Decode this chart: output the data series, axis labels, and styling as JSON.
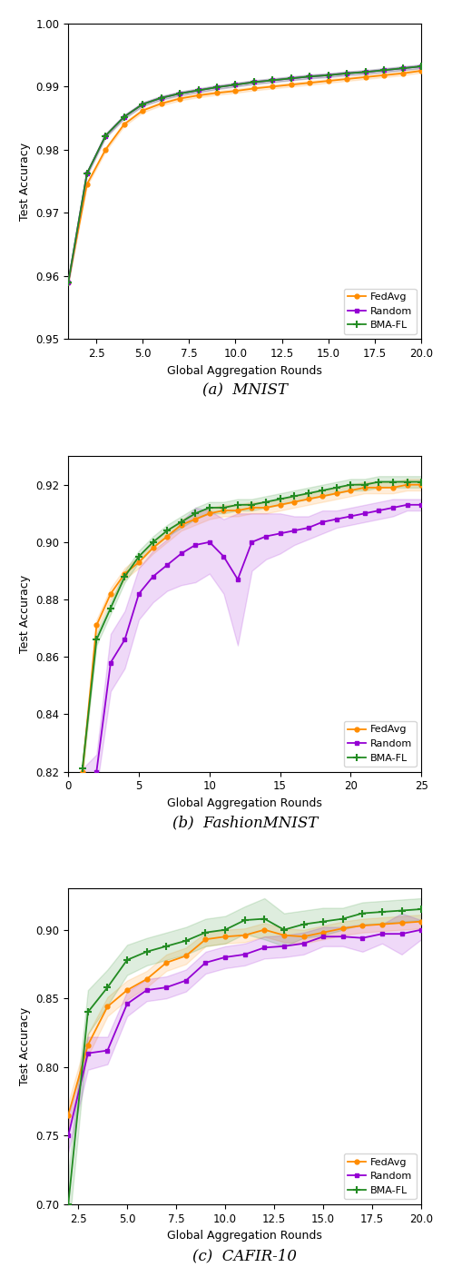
{
  "subplot_titles": [
    "(a)  MNIST",
    "(b)  FashionMNIST",
    "(c)  CAFIR-10"
  ],
  "xlabel": "Global Aggregation Rounds",
  "ylabel": "Test Accuracy",
  "legend_labels": [
    "FedAvg",
    "Random",
    "BMA-FL"
  ],
  "colors": {
    "fedavg": "#FF8C00",
    "random": "#9400D3",
    "bmafl": "#228B22"
  },
  "fill_alpha": 0.15,
  "mnist": {
    "x": [
      1,
      2,
      3,
      4,
      5,
      6,
      7,
      8,
      9,
      10,
      11,
      12,
      13,
      14,
      15,
      16,
      17,
      18,
      19,
      20
    ],
    "fedavg_y": [
      0.959,
      0.9745,
      0.98,
      0.984,
      0.9862,
      0.9873,
      0.9881,
      0.9886,
      0.989,
      0.9893,
      0.9897,
      0.99,
      0.9903,
      0.9906,
      0.9909,
      0.9912,
      0.9915,
      0.9918,
      0.9921,
      0.9925
    ],
    "random_y": [
      0.959,
      0.9762,
      0.9822,
      0.9852,
      0.9872,
      0.9882,
      0.9889,
      0.9894,
      0.9899,
      0.9903,
      0.9907,
      0.991,
      0.9913,
      0.9916,
      0.9918,
      0.9921,
      0.9923,
      0.9926,
      0.9929,
      0.9932
    ],
    "bmafl_y": [
      0.959,
      0.9762,
      0.9822,
      0.9852,
      0.9872,
      0.9882,
      0.9889,
      0.9894,
      0.9899,
      0.9903,
      0.9907,
      0.991,
      0.9913,
      0.9916,
      0.9918,
      0.9921,
      0.9923,
      0.9926,
      0.9929,
      0.9932
    ],
    "fedavg_std": [
      0.0003,
      0.0003,
      0.0003,
      0.0003,
      0.0003,
      0.0003,
      0.0003,
      0.0003,
      0.0003,
      0.0003,
      0.0003,
      0.0003,
      0.0003,
      0.0003,
      0.0003,
      0.0003,
      0.0003,
      0.0003,
      0.0003,
      0.0003
    ],
    "random_std": [
      0.0003,
      0.0003,
      0.0003,
      0.0003,
      0.0003,
      0.0003,
      0.0003,
      0.0003,
      0.0003,
      0.0003,
      0.0003,
      0.0003,
      0.0003,
      0.0003,
      0.0003,
      0.0003,
      0.0003,
      0.0003,
      0.0003,
      0.0003
    ],
    "bmafl_std": [
      0.0003,
      0.0003,
      0.0003,
      0.0003,
      0.0003,
      0.0003,
      0.0003,
      0.0003,
      0.0003,
      0.0003,
      0.0003,
      0.0003,
      0.0003,
      0.0003,
      0.0003,
      0.0003,
      0.0003,
      0.0003,
      0.0003,
      0.0003
    ],
    "xlim": [
      1,
      20
    ],
    "ylim": [
      0.95,
      1.0
    ],
    "xticks": [
      2.5,
      5.0,
      7.5,
      10.0,
      12.5,
      15.0,
      17.5,
      20.0
    ],
    "yticks": [
      0.95,
      0.96,
      0.97,
      0.98,
      0.99,
      1.0
    ]
  },
  "fashionmnist": {
    "x": [
      1,
      2,
      3,
      4,
      5,
      6,
      7,
      8,
      9,
      10,
      11,
      12,
      13,
      14,
      15,
      16,
      17,
      18,
      19,
      20,
      21,
      22,
      23,
      24,
      25
    ],
    "fedavg_y": [
      0.82,
      0.871,
      0.882,
      0.889,
      0.893,
      0.898,
      0.902,
      0.906,
      0.908,
      0.91,
      0.911,
      0.911,
      0.912,
      0.912,
      0.913,
      0.914,
      0.915,
      0.916,
      0.917,
      0.918,
      0.919,
      0.919,
      0.919,
      0.92,
      0.92
    ],
    "random_y": [
      0.816,
      0.82,
      0.858,
      0.866,
      0.882,
      0.888,
      0.892,
      0.896,
      0.899,
      0.9,
      0.895,
      0.887,
      0.9,
      0.902,
      0.903,
      0.904,
      0.905,
      0.907,
      0.908,
      0.909,
      0.91,
      0.911,
      0.912,
      0.913,
      0.913
    ],
    "bmafl_y": [
      0.821,
      0.866,
      0.877,
      0.888,
      0.895,
      0.9,
      0.904,
      0.907,
      0.91,
      0.912,
      0.912,
      0.913,
      0.913,
      0.914,
      0.915,
      0.916,
      0.917,
      0.918,
      0.919,
      0.92,
      0.92,
      0.921,
      0.921,
      0.921,
      0.921
    ],
    "fedavg_std": [
      0.002,
      0.002,
      0.002,
      0.002,
      0.002,
      0.002,
      0.002,
      0.002,
      0.002,
      0.002,
      0.002,
      0.002,
      0.002,
      0.002,
      0.002,
      0.002,
      0.002,
      0.002,
      0.002,
      0.002,
      0.002,
      0.002,
      0.002,
      0.002,
      0.002
    ],
    "random_std": [
      0.005,
      0.006,
      0.01,
      0.01,
      0.009,
      0.009,
      0.009,
      0.011,
      0.013,
      0.011,
      0.013,
      0.023,
      0.01,
      0.008,
      0.007,
      0.005,
      0.004,
      0.004,
      0.003,
      0.003,
      0.003,
      0.003,
      0.003,
      0.002,
      0.002
    ],
    "bmafl_std": [
      0.002,
      0.002,
      0.002,
      0.002,
      0.002,
      0.002,
      0.002,
      0.002,
      0.002,
      0.002,
      0.002,
      0.002,
      0.002,
      0.002,
      0.002,
      0.002,
      0.002,
      0.002,
      0.002,
      0.002,
      0.002,
      0.002,
      0.002,
      0.002,
      0.002
    ],
    "xlim": [
      0,
      25
    ],
    "ylim": [
      0.82,
      0.93
    ],
    "xticks": [
      0,
      5,
      10,
      15,
      20,
      25
    ],
    "yticks": [
      0.82,
      0.84,
      0.86,
      0.88,
      0.9,
      0.92
    ]
  },
  "cifar10": {
    "x": [
      2,
      3,
      4,
      5,
      6,
      7,
      8,
      9,
      10,
      11,
      12,
      13,
      14,
      15,
      16,
      17,
      18,
      19,
      20
    ],
    "fedavg_y": [
      0.765,
      0.816,
      0.844,
      0.856,
      0.864,
      0.876,
      0.881,
      0.893,
      0.895,
      0.896,
      0.9,
      0.896,
      0.895,
      0.898,
      0.901,
      0.903,
      0.904,
      0.905,
      0.906
    ],
    "random_y": [
      0.75,
      0.81,
      0.812,
      0.846,
      0.856,
      0.858,
      0.863,
      0.876,
      0.88,
      0.882,
      0.887,
      0.888,
      0.89,
      0.895,
      0.895,
      0.894,
      0.897,
      0.897,
      0.9
    ],
    "bmafl_y": [
      0.7,
      0.84,
      0.858,
      0.878,
      0.884,
      0.888,
      0.892,
      0.898,
      0.9,
      0.907,
      0.908,
      0.9,
      0.904,
      0.906,
      0.908,
      0.912,
      0.913,
      0.914,
      0.915
    ],
    "fedavg_std": [
      0.009,
      0.008,
      0.007,
      0.007,
      0.006,
      0.006,
      0.006,
      0.005,
      0.005,
      0.005,
      0.005,
      0.005,
      0.005,
      0.005,
      0.005,
      0.005,
      0.005,
      0.005,
      0.005
    ],
    "random_std": [
      0.012,
      0.012,
      0.01,
      0.009,
      0.008,
      0.008,
      0.008,
      0.008,
      0.008,
      0.008,
      0.008,
      0.008,
      0.008,
      0.007,
      0.007,
      0.01,
      0.007,
      0.015,
      0.007
    ],
    "bmafl_std": [
      0.022,
      0.016,
      0.013,
      0.011,
      0.01,
      0.01,
      0.01,
      0.01,
      0.01,
      0.01,
      0.015,
      0.012,
      0.01,
      0.01,
      0.008,
      0.008,
      0.008,
      0.008,
      0.008
    ],
    "xlim": [
      2,
      20
    ],
    "ylim": [
      0.7,
      0.93
    ],
    "xticks": [
      2.5,
      5.0,
      7.5,
      10.0,
      12.5,
      15.0,
      17.5,
      20.0
    ],
    "yticks": [
      0.7,
      0.75,
      0.8,
      0.85,
      0.9
    ]
  }
}
